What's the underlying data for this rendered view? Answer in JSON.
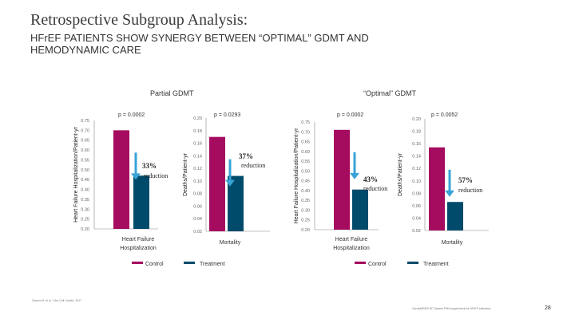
{
  "slide": {
    "title": "Retrospective Subgroup Analysis:",
    "subtitle": "HFrEF PATIENTS SHOW SYNERGY BETWEEN “OPTIMAL” GDMT AND HEMODYNAMIC CARE",
    "groups": [
      "Partial GDMT",
      "“Optimal” GDMT"
    ],
    "footnote": "Givertz M, et al. J Am Coll Cardiol. 2017",
    "source_note": "CardioMEMS HF System PMA supplement for HFrEF indication",
    "page_number": "28"
  },
  "colors": {
    "control": "#A50B5E",
    "treatment": "#004B6B",
    "arrow": "#3AA3D6",
    "axis": "#888888"
  },
  "chart_data": [
    {
      "type": "bar",
      "group": "Partial GDMT",
      "title": "Heart Failure Hospitalization",
      "ylabel": "Heart Failure Hospitalization/Patient-yr",
      "ylim": [
        0.2,
        0.75
      ],
      "yticks": [
        "0.75",
        "0.70",
        "0.65",
        "0.60",
        "0.55",
        "0.50",
        "0.45",
        "0.40",
        "0.35",
        "0.30",
        "0.25",
        "0.20"
      ],
      "categories": [
        "Control",
        "Treatment"
      ],
      "values": [
        0.7,
        0.47
      ],
      "p_value": "p = 0.0002",
      "reduction_pct": "33%",
      "reduction_label": "reduction"
    },
    {
      "type": "bar",
      "group": "Partial GDMT",
      "title": "Mortality",
      "ylabel": "Deaths/Patient-yr",
      "ylim": [
        0.02,
        0.2
      ],
      "yticks": [
        "0.20",
        "0.18",
        "0.16",
        "0.14",
        "0.12",
        "0.10",
        "0.08",
        "0.06",
        "0.04",
        "0.02"
      ],
      "categories": [
        "Control",
        "Treatment"
      ],
      "values": [
        0.17,
        0.108
      ],
      "p_value": "p = 0.0293",
      "reduction_pct": "37%",
      "reduction_label": "reduction"
    },
    {
      "type": "bar",
      "group": "“Optimal” GDMT",
      "title": "Heart Failure Hospitalization",
      "ylabel": "Heart Failure Hospitalization/Patient-yr",
      "ylim": [
        0.2,
        0.75
      ],
      "yticks": [
        "0.75",
        "0.70",
        "0.65",
        "0.60",
        "0.55",
        "0.50",
        "0.45",
        "0.40",
        "0.35",
        "0.30",
        "0.25",
        "0.20"
      ],
      "categories": [
        "Control",
        "Treatment"
      ],
      "values": [
        0.71,
        0.405
      ],
      "p_value": "p = 0.0002",
      "reduction_pct": "43%",
      "reduction_label": "reduction"
    },
    {
      "type": "bar",
      "group": "“Optimal” GDMT",
      "title": "Mortality",
      "ylabel": "Deaths/Patient-yr",
      "ylim": [
        0.02,
        0.2
      ],
      "yticks": [
        "0.20",
        "0.18",
        "0.16",
        "0.14",
        "0.12",
        "0.10",
        "0.08",
        "0.06",
        "0.04",
        "0.02"
      ],
      "categories": [
        "Control",
        "Treatment"
      ],
      "values": [
        0.154,
        0.066
      ],
      "p_value": "p = 0.0052",
      "reduction_pct": "57%",
      "reduction_label": "reduction"
    }
  ],
  "legend": {
    "control": "Control",
    "treatment": "Treatment"
  }
}
